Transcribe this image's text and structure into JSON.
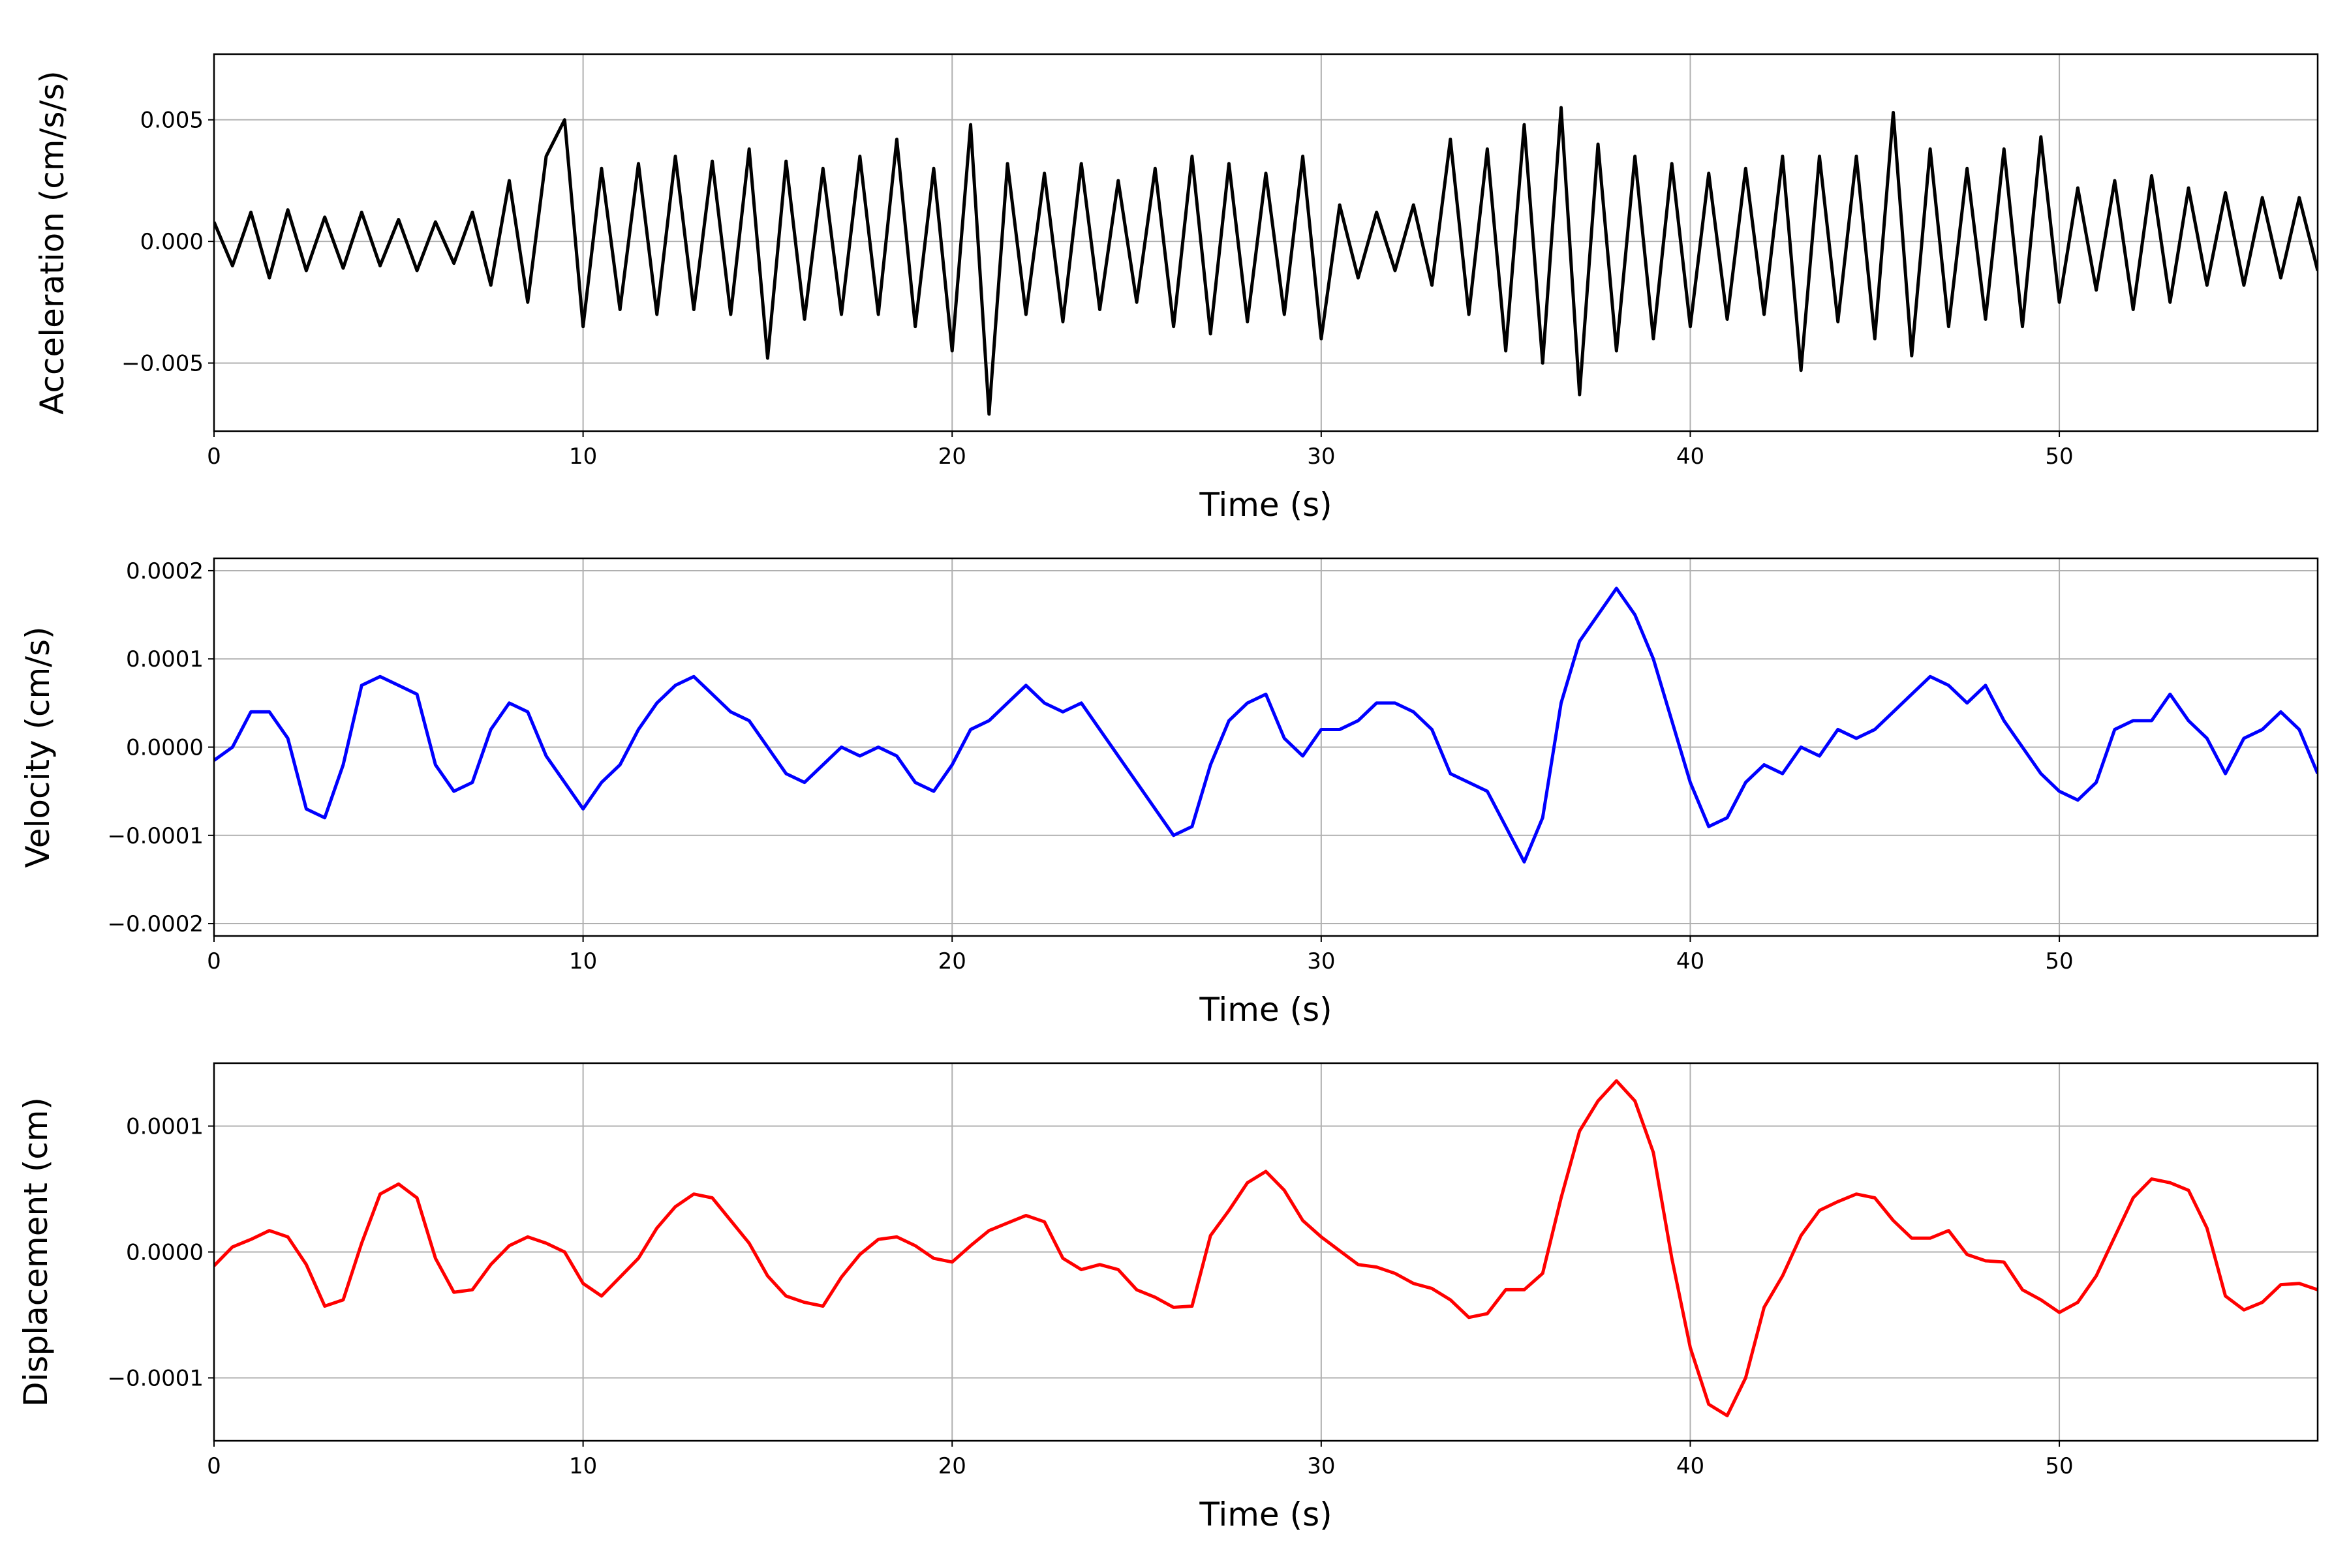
{
  "chart_data": [
    {
      "type": "line",
      "ylabel": "Acceleration (cm/s/s)",
      "xlabel": "Time (s)",
      "grid": true,
      "xlim": [
        0,
        57
      ],
      "xticks": [
        0,
        10,
        20,
        30,
        40,
        50
      ],
      "ylim": [
        -0.0078,
        0.0077
      ],
      "yticks": [
        {
          "value": -0.005,
          "label": "−0.005"
        },
        {
          "value": 0,
          "label": "0.000"
        },
        {
          "value": 0.005,
          "label": "0.005"
        }
      ],
      "x": [
        0,
        0.5,
        1,
        1.5,
        2,
        2.5,
        3,
        3.5,
        4,
        4.5,
        5,
        5.5,
        6,
        6.5,
        7,
        7.5,
        8,
        8.5,
        9,
        9.5,
        10,
        10.5,
        11,
        11.5,
        12,
        12.5,
        13,
        13.5,
        14,
        14.5,
        15,
        15.5,
        16,
        16.5,
        17,
        17.5,
        18,
        18.5,
        19,
        19.5,
        20,
        20.5,
        21,
        21.5,
        22,
        22.5,
        23,
        23.5,
        24,
        24.5,
        25,
        25.5,
        26,
        26.5,
        27,
        27.5,
        28,
        28.5,
        29,
        29.5,
        30,
        30.5,
        31,
        31.5,
        32,
        32.5,
        33,
        33.5,
        34,
        34.5,
        35,
        35.5,
        36,
        36.5,
        37,
        37.5,
        38,
        38.5,
        39,
        39.5,
        40,
        40.5,
        41,
        41.5,
        42,
        42.5,
        43,
        43.5,
        44,
        44.5,
        45,
        45.5,
        46,
        46.5,
        47,
        47.5,
        48,
        48.5,
        49,
        49.5,
        50,
        50.5,
        51,
        51.5,
        52,
        52.5,
        53,
        53.5,
        54,
        54.5,
        55,
        55.5,
        56,
        56.5,
        57
      ],
      "series": [
        {
          "color": "#000000",
          "values": [
            0.0008,
            -0.001,
            0.0012,
            -0.0015,
            0.0013,
            -0.0012,
            0.001,
            -0.0011,
            0.0012,
            -0.001,
            0.0009,
            -0.0012,
            0.0008,
            -0.0009,
            0.0012,
            -0.0018,
            0.0025,
            -0.0025,
            0.0035,
            0.005,
            -0.0035,
            0.003,
            -0.0028,
            0.0032,
            -0.003,
            0.0035,
            -0.0028,
            0.0033,
            -0.003,
            0.0038,
            -0.0048,
            0.0033,
            -0.0032,
            0.003,
            -0.003,
            0.0035,
            -0.003,
            0.0042,
            -0.0035,
            0.003,
            -0.0045,
            0.0048,
            -0.0071,
            0.0032,
            -0.003,
            0.0028,
            -0.0033,
            0.0032,
            -0.0028,
            0.0025,
            -0.0025,
            0.003,
            -0.0035,
            0.0035,
            -0.0038,
            0.0032,
            -0.0033,
            0.0028,
            -0.003,
            0.0035,
            -0.004,
            0.0015,
            -0.0015,
            0.0012,
            -0.0012,
            0.0015,
            -0.0018,
            0.0042,
            -0.003,
            0.0038,
            -0.0045,
            0.0048,
            -0.005,
            0.0055,
            -0.0063,
            0.004,
            -0.0045,
            0.0035,
            -0.004,
            0.0032,
            -0.0035,
            0.0028,
            -0.0032,
            0.003,
            -0.003,
            0.0035,
            -0.0053,
            0.0035,
            -0.0033,
            0.0035,
            -0.004,
            0.0053,
            -0.0047,
            0.0038,
            -0.0035,
            0.003,
            -0.0032,
            0.0038,
            -0.0035,
            0.0043,
            -0.0025,
            0.0022,
            -0.002,
            0.0025,
            -0.0028,
            0.0027,
            -0.0025,
            0.0022,
            -0.0018,
            0.002,
            -0.0018,
            0.0018,
            -0.0015,
            0.0018,
            -0.0012
          ]
        }
      ]
    },
    {
      "type": "line",
      "ylabel": "Velocity (cm/s)",
      "xlabel": "Time (s)",
      "grid": true,
      "xlim": [
        0,
        57
      ],
      "xticks": [
        0,
        10,
        20,
        30,
        40,
        50
      ],
      "ylim": [
        -0.000214,
        0.000214
      ],
      "yticks": [
        {
          "value": -0.0002,
          "label": "−0.0002"
        },
        {
          "value": -0.0001,
          "label": "−0.0001"
        },
        {
          "value": 0,
          "label": "0.0000"
        },
        {
          "value": 0.0001,
          "label": "0.0001"
        },
        {
          "value": 0.0002,
          "label": "0.0002"
        }
      ],
      "x": [
        0,
        0.5,
        1,
        1.5,
        2,
        2.5,
        3,
        3.5,
        4,
        4.5,
        5,
        5.5,
        6,
        6.5,
        7,
        7.5,
        8,
        8.5,
        9,
        9.5,
        10,
        10.5,
        11,
        11.5,
        12,
        12.5,
        13,
        13.5,
        14,
        14.5,
        15,
        15.5,
        16,
        16.5,
        17,
        17.5,
        18,
        18.5,
        19,
        19.5,
        20,
        20.5,
        21,
        21.5,
        22,
        22.5,
        23,
        23.5,
        24,
        24.5,
        25,
        25.5,
        26,
        26.5,
        27,
        27.5,
        28,
        28.5,
        29,
        29.5,
        30,
        30.5,
        31,
        31.5,
        32,
        32.5,
        33,
        33.5,
        34,
        34.5,
        35,
        35.5,
        36,
        36.5,
        37,
        37.5,
        38,
        38.5,
        39,
        39.5,
        40,
        40.5,
        41,
        41.5,
        42,
        42.5,
        43,
        43.5,
        44,
        44.5,
        45,
        45.5,
        46,
        46.5,
        47,
        47.5,
        48,
        48.5,
        49,
        49.5,
        50,
        50.5,
        51,
        51.5,
        52,
        52.5,
        53,
        53.5,
        54,
        54.5,
        55,
        55.5,
        56,
        56.5,
        57
      ],
      "series": [
        {
          "color": "#0000ff",
          "values": [
            -1.5e-05,
            0,
            4e-05,
            4e-05,
            1e-05,
            -7e-05,
            -8e-05,
            -2e-05,
            7e-05,
            8e-05,
            7e-05,
            6e-05,
            -2e-05,
            -5e-05,
            -4e-05,
            2e-05,
            5e-05,
            4e-05,
            -1e-05,
            -4e-05,
            -7e-05,
            -4e-05,
            -2e-05,
            2e-05,
            5e-05,
            7e-05,
            8e-05,
            6e-05,
            4e-05,
            3e-05,
            0,
            -3e-05,
            -4e-05,
            -2e-05,
            0,
            -1e-05,
            0,
            -1e-05,
            -4e-05,
            -5e-05,
            -2e-05,
            2e-05,
            3e-05,
            5e-05,
            7e-05,
            5e-05,
            4e-05,
            5e-05,
            2e-05,
            -1e-05,
            -4e-05,
            -7e-05,
            -0.0001,
            -9e-05,
            -2e-05,
            3e-05,
            5e-05,
            6e-05,
            1e-05,
            -1e-05,
            2e-05,
            2e-05,
            3e-05,
            5e-05,
            5e-05,
            4e-05,
            2e-05,
            -3e-05,
            -4e-05,
            -5e-05,
            -9e-05,
            -0.00013,
            -8e-05,
            5e-05,
            0.00012,
            0.00015,
            0.00018,
            0.00015,
            0.0001,
            3e-05,
            -4e-05,
            -9e-05,
            -8e-05,
            -4e-05,
            -2e-05,
            -3e-05,
            0,
            -1e-05,
            2e-05,
            1e-05,
            2e-05,
            4e-05,
            6e-05,
            8e-05,
            7e-05,
            5e-05,
            7e-05,
            3e-05,
            0,
            -3e-05,
            -5e-05,
            -6e-05,
            -4e-05,
            2e-05,
            3e-05,
            3e-05,
            6e-05,
            3e-05,
            1e-05,
            -3e-05,
            1e-05,
            2e-05,
            4e-05,
            2e-05,
            -3e-05
          ]
        }
      ]
    },
    {
      "type": "line",
      "ylabel": "Displacement (cm)",
      "xlabel": "Time (s)",
      "grid": true,
      "xlim": [
        0,
        57
      ],
      "xticks": [
        0,
        10,
        20,
        30,
        40,
        50
      ],
      "ylim": [
        -0.00015,
        0.00015
      ],
      "yticks": [
        {
          "value": -0.0001,
          "label": "−0.0001"
        },
        {
          "value": 0,
          "label": "0.0000"
        },
        {
          "value": 0.0001,
          "label": "0.0001"
        }
      ],
      "x": [
        0,
        0.5,
        1,
        1.5,
        2,
        2.5,
        3,
        3.5,
        4,
        4.5,
        5,
        5.5,
        6,
        6.5,
        7,
        7.5,
        8,
        8.5,
        9,
        9.5,
        10,
        10.5,
        11,
        11.5,
        12,
        12.5,
        13,
        13.5,
        14,
        14.5,
        15,
        15.5,
        16,
        16.5,
        17,
        17.5,
        18,
        18.5,
        19,
        19.5,
        20,
        20.5,
        21,
        21.5,
        22,
        22.5,
        23,
        23.5,
        24,
        24.5,
        25,
        25.5,
        26,
        26.5,
        27,
        27.5,
        28,
        28.5,
        29,
        29.5,
        30,
        30.5,
        31,
        31.5,
        32,
        32.5,
        33,
        33.5,
        34,
        34.5,
        35,
        35.5,
        36,
        36.5,
        37,
        37.5,
        38,
        38.5,
        39,
        39.5,
        40,
        40.5,
        41,
        41.5,
        42,
        42.5,
        43,
        43.5,
        44,
        44.5,
        45,
        45.5,
        46,
        46.5,
        47,
        47.5,
        48,
        48.5,
        49,
        49.5,
        50,
        50.5,
        51,
        51.5,
        52,
        52.5,
        53,
        53.5,
        54,
        54.5,
        55,
        55.5,
        56,
        56.5,
        57
      ],
      "series": [
        {
          "color": "#ff0000",
          "values": [
            -1.1e-05,
            4e-06,
            1e-05,
            1.7e-05,
            1.2e-05,
            -1e-05,
            -4.3e-05,
            -3.8e-05,
            7e-06,
            4.6e-05,
            5.4e-05,
            4.3e-05,
            -5e-06,
            -3.2e-05,
            -3e-05,
            -1e-05,
            5e-06,
            1.2e-05,
            7e-06,
            0,
            -2.5e-05,
            -3.5e-05,
            -2e-05,
            -5e-06,
            1.9e-05,
            3.6e-05,
            4.6e-05,
            4.3e-05,
            2.5e-05,
            7e-06,
            -1.9e-05,
            -3.5e-05,
            -4e-05,
            -4.3e-05,
            -2e-05,
            -2e-06,
            1e-05,
            1.2e-05,
            5e-06,
            -5e-06,
            -8e-06,
            5e-06,
            1.7e-05,
            2.3e-05,
            2.9e-05,
            2.4e-05,
            -5e-06,
            -1.4e-05,
            -1e-05,
            -1.4e-05,
            -3e-05,
            -3.6e-05,
            -4.4e-05,
            -4.3e-05,
            1.3e-05,
            3.3e-05,
            5.5e-05,
            6.4e-05,
            4.9e-05,
            2.5e-05,
            1.2e-05,
            1e-06,
            -1e-05,
            -1.2e-05,
            -1.7e-05,
            -2.5e-05,
            -2.9e-05,
            -3.8e-05,
            -5.2e-05,
            -4.9e-05,
            -3e-05,
            -3e-05,
            -1.7e-05,
            4.3e-05,
            9.6e-05,
            0.00012,
            0.000136,
            0.00012,
            7.9e-05,
            -5e-06,
            -7.6e-05,
            -0.000121,
            -0.00013,
            -0.0001,
            -4.4e-05,
            -1.9e-05,
            1.3e-05,
            3.3e-05,
            4e-05,
            4.6e-05,
            4.3e-05,
            2.5e-05,
            1.1e-05,
            1.1e-05,
            1.7e-05,
            -2e-06,
            -7e-06,
            -8e-06,
            -3e-05,
            -3.8e-05,
            -4.8e-05,
            -4e-05,
            -1.9e-05,
            1.2e-05,
            4.3e-05,
            5.8e-05,
            5.5e-05,
            4.9e-05,
            1.9e-05,
            -3.5e-05,
            -4.6e-05,
            -4e-05,
            -2.6e-05,
            -2.5e-05,
            -3e-05
          ]
        }
      ]
    }
  ]
}
